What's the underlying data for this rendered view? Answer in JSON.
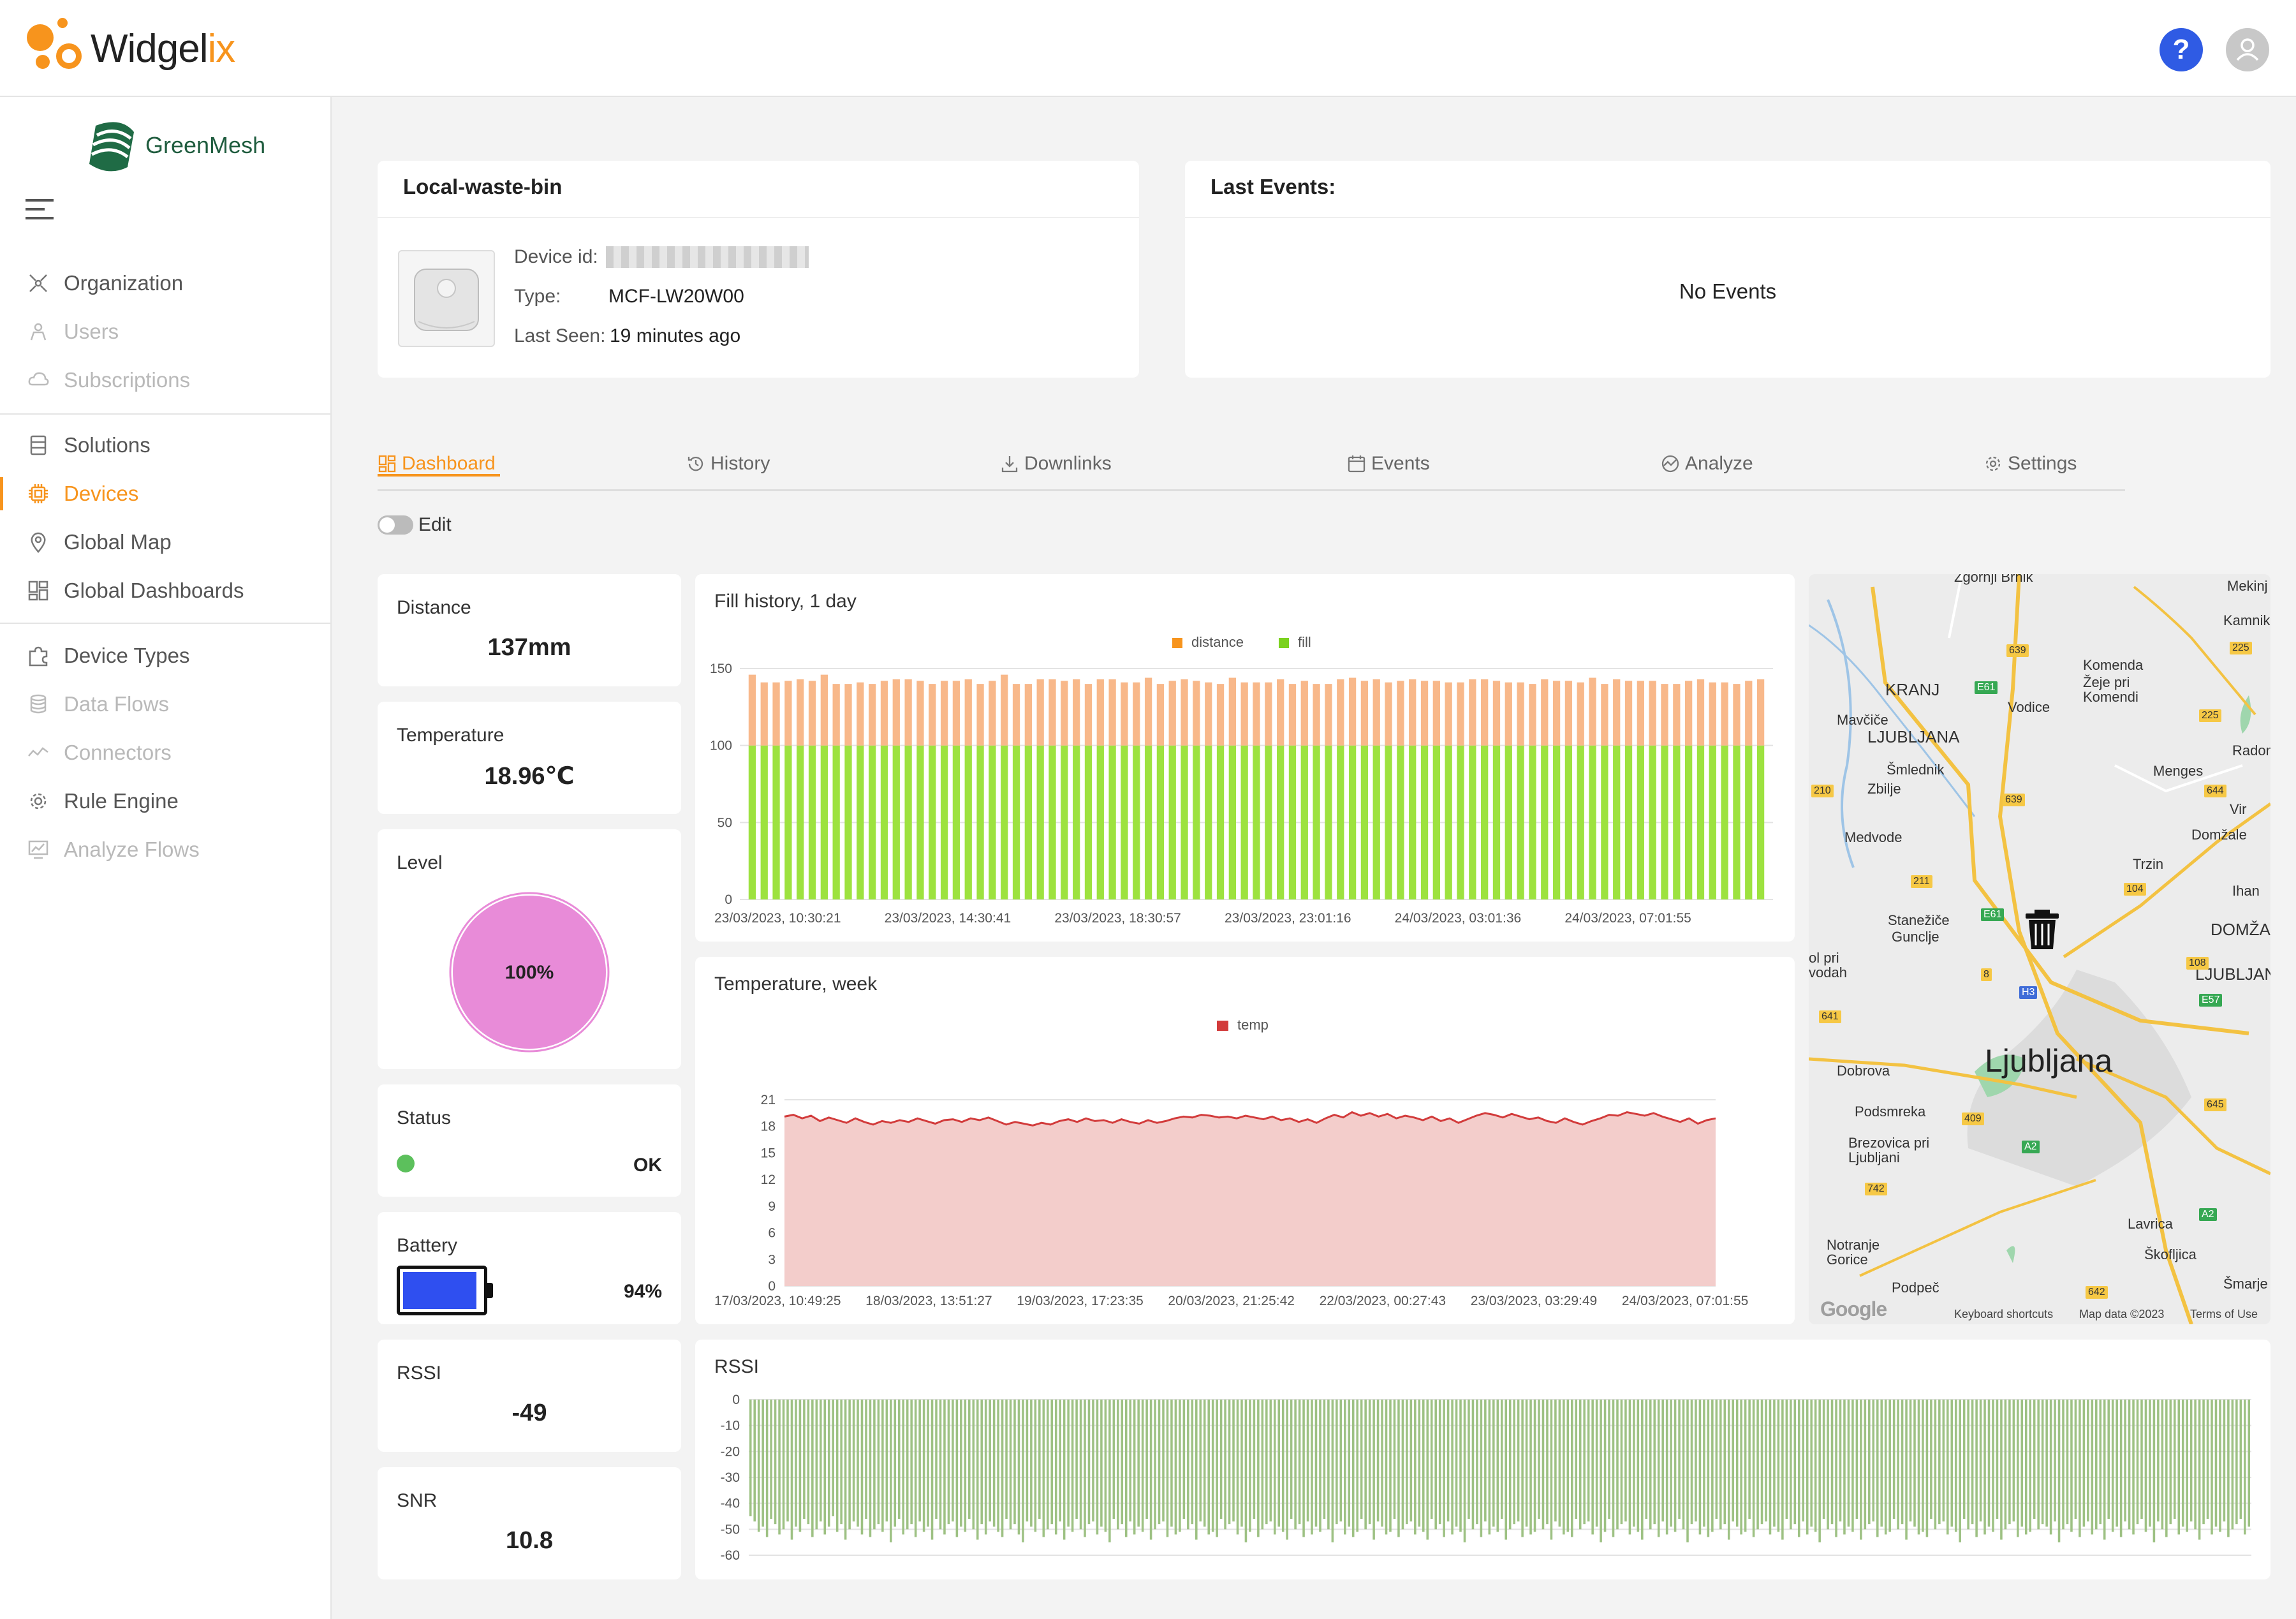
{
  "app": {
    "name_main": "Widgel",
    "name_accent": "ix"
  },
  "header": {
    "help_label": "?"
  },
  "org": {
    "name": "GreenMesh"
  },
  "sidebar": {
    "items": [
      {
        "label": "Organization",
        "icon": "organization-icon",
        "state": "normal"
      },
      {
        "label": "Users",
        "icon": "users-icon",
        "state": "disabled"
      },
      {
        "label": "Subscriptions",
        "icon": "cloud-icon",
        "state": "disabled"
      },
      {
        "label": "Solutions",
        "icon": "solutions-icon",
        "state": "normal"
      },
      {
        "label": "Devices",
        "icon": "chip-icon",
        "state": "active"
      },
      {
        "label": "Global Map",
        "icon": "map-pin-icon",
        "state": "normal"
      },
      {
        "label": "Global Dashboards",
        "icon": "dashboard-icon",
        "state": "normal"
      },
      {
        "label": "Device Types",
        "icon": "puzzle-icon",
        "state": "normal"
      },
      {
        "label": "Data Flows",
        "icon": "database-icon",
        "state": "disabled"
      },
      {
        "label": "Connectors",
        "icon": "connectors-icon",
        "state": "disabled"
      },
      {
        "label": "Rule Engine",
        "icon": "gear-icon",
        "state": "normal"
      },
      {
        "label": "Analyze Flows",
        "icon": "analyze-icon",
        "state": "disabled"
      }
    ]
  },
  "device": {
    "name": "Local-waste-bin",
    "id_label": "Device id:",
    "type_label": "Type:",
    "type_value": "MCF-LW20W00",
    "last_seen_label": "Last Seen:",
    "last_seen_value": "19 minutes ago"
  },
  "events": {
    "title": "Last Events:",
    "empty": "No Events"
  },
  "tabs": [
    {
      "label": "Dashboard",
      "icon": "dashboard-icon"
    },
    {
      "label": "History",
      "icon": "history-icon"
    },
    {
      "label": "Downlinks",
      "icon": "download-icon"
    },
    {
      "label": "Events",
      "icon": "calendar-icon"
    },
    {
      "label": "Analyze",
      "icon": "analyze-icon"
    },
    {
      "label": "Settings",
      "icon": "settings-icon"
    }
  ],
  "edit": {
    "label": "Edit",
    "enabled": false
  },
  "widgets": {
    "distance": {
      "label": "Distance",
      "value": "137mm"
    },
    "temperature": {
      "label": "Temperature",
      "value": "18.96℃"
    },
    "level": {
      "label": "Level",
      "value": "100%",
      "fraction": 1.0,
      "color": "#e88bd8"
    },
    "status": {
      "label": "Status",
      "value": "OK",
      "color": "#5cc05c"
    },
    "battery": {
      "label": "Battery",
      "value": "94%",
      "fraction": 0.94,
      "color": "#2f4ff0"
    },
    "rssi": {
      "label": "RSSI",
      "value": "-49"
    },
    "snr": {
      "label": "SNR",
      "value": "10.8"
    }
  },
  "chart_data": [
    {
      "type": "bar",
      "stacked": true,
      "title": "Fill history, 1 day",
      "ylim": [
        0,
        150
      ],
      "yticks": [
        0,
        50,
        100,
        150
      ],
      "xtick_labels": [
        "23/03/2023, 10:30:21",
        "23/03/2023, 14:30:41",
        "23/03/2023, 18:30:57",
        "23/03/2023, 23:01:16",
        "24/03/2023, 03:01:36",
        "24/03/2023, 07:01:55"
      ],
      "legend_position": "top-center",
      "series": [
        {
          "name": "fill",
          "color": "#9de23f",
          "values": [
            100,
            100,
            100,
            100,
            100,
            100,
            100,
            100,
            100,
            100,
            100,
            100,
            100,
            100,
            100,
            100,
            100,
            100,
            100,
            100,
            100,
            100,
            100,
            100,
            100,
            100,
            100,
            100,
            100,
            100,
            100,
            100,
            100,
            100,
            100,
            100,
            100,
            100,
            100,
            100,
            100,
            100,
            100,
            100,
            100,
            100,
            100,
            100,
            100,
            100,
            100,
            100,
            100,
            100,
            100,
            100,
            100,
            100,
            100,
            100,
            100,
            100,
            100,
            100,
            100,
            100,
            100,
            100,
            100,
            100,
            100,
            100,
            100,
            100,
            100,
            100,
            100,
            100,
            100,
            100,
            100,
            100,
            100,
            100,
            100
          ]
        },
        {
          "name": "distance",
          "color": "#f8b88a",
          "values": [
            46,
            41,
            41,
            42,
            43,
            42,
            46,
            40,
            40,
            41,
            40,
            42,
            43,
            43,
            42,
            40,
            42,
            42,
            43,
            40,
            42,
            46,
            40,
            40,
            43,
            43,
            42,
            43,
            40,
            43,
            43,
            41,
            41,
            44,
            40,
            42,
            43,
            42,
            41,
            40,
            44,
            41,
            41,
            41,
            43,
            40,
            42,
            40,
            40,
            43,
            44,
            42,
            43,
            41,
            42,
            43,
            42,
            42,
            41,
            41,
            43,
            43,
            42,
            41,
            41,
            40,
            43,
            42,
            42,
            41,
            44,
            40,
            43,
            42,
            42,
            42,
            40,
            40,
            42,
            43,
            41,
            41,
            40,
            42,
            43
          ]
        }
      ]
    },
    {
      "type": "area",
      "title": "Temperature, week",
      "ylim": [
        0,
        21
      ],
      "yticks": [
        0,
        3,
        6,
        9,
        12,
        15,
        18,
        21
      ],
      "xtick_labels": [
        "17/03/2023, 10:49:25",
        "18/03/2023, 13:51:27",
        "19/03/2023, 17:23:35",
        "20/03/2023, 21:25:42",
        "22/03/2023, 00:27:43",
        "23/03/2023, 03:29:49",
        "24/03/2023, 07:01:55"
      ],
      "legend_position": "top-center",
      "series": [
        {
          "name": "temp",
          "color": "#d23b3b",
          "fill": "#f3cdcb",
          "values": [
            19.1,
            19.3,
            18.9,
            19.2,
            18.6,
            19.0,
            18.7,
            18.4,
            18.9,
            18.5,
            18.2,
            18.6,
            18.4,
            18.7,
            18.5,
            18.9,
            18.6,
            18.3,
            18.7,
            18.8,
            18.5,
            18.9,
            18.7,
            19.0,
            18.6,
            18.2,
            18.5,
            18.3,
            18.1,
            18.4,
            18.2,
            18.6,
            18.8,
            18.5,
            18.9,
            18.6,
            18.7,
            18.4,
            18.8,
            18.5,
            18.3,
            18.7,
            18.4,
            18.6,
            18.9,
            19.1,
            19.0,
            19.3,
            19.2,
            19.0,
            19.1,
            18.9,
            19.2,
            19.0,
            18.8,
            19.1,
            18.7,
            18.9,
            18.5,
            18.8,
            18.4,
            18.9,
            19.3,
            19.0,
            19.6,
            19.2,
            19.5,
            19.1,
            19.4,
            18.9,
            19.2,
            19.0,
            18.7,
            19.1,
            18.6,
            18.9,
            18.4,
            18.8,
            19.2,
            19.5,
            19.3,
            19.0,
            19.4,
            19.1,
            18.8,
            19.0,
            18.6,
            18.4,
            18.9,
            18.5,
            18.2,
            18.6,
            18.9,
            19.3,
            19.2,
            19.6,
            19.4,
            19.2,
            19.5,
            19.1,
            18.8,
            18.5,
            18.9,
            18.3,
            18.7,
            18.9
          ]
        }
      ]
    },
    {
      "type": "bar",
      "title": "RSSI",
      "ylim": [
        -60,
        0
      ],
      "yticks": [
        0,
        -10,
        -20,
        -30,
        -40,
        -50,
        -60
      ],
      "series": [
        {
          "name": "RSSI",
          "color": "#9dc183",
          "values": [
            -45,
            -47,
            -51,
            -49,
            -53,
            -46,
            -48,
            -52,
            -50,
            -47,
            -54,
            -49,
            -51,
            -46,
            -48,
            -53,
            -50,
            -47,
            -52,
            -49,
            -45,
            -51,
            -48,
            -54,
            -50,
            -47,
            -49,
            -52,
            -46,
            -53,
            -50,
            -48,
            -51,
            -47,
            -55,
            -49,
            -46,
            -52,
            -50,
            -48,
            -53,
            -47,
            -51,
            -49,
            -54,
            -46,
            -50,
            -52,
            -48,
            -47,
            -53,
            -49,
            -51,
            -46,
            -50,
            -54,
            -48,
            -52,
            -47,
            -49,
            -51,
            -53,
            -46,
            -50,
            -48,
            -52,
            -55,
            -47,
            -49,
            -51,
            -46,
            -53,
            -50,
            -48,
            -52,
            -47,
            -54,
            -49,
            -51,
            -46,
            -50,
            -53,
            -48,
            -47,
            -52,
            -49,
            -51,
            -55,
            -46,
            -50,
            -48,
            -53,
            -47,
            -52,
            -49,
            -51,
            -46,
            -54,
            -50,
            -48,
            -47,
            -53,
            -49,
            -52,
            -51,
            -46,
            -50,
            -48,
            -54,
            -47,
            -49,
            -52,
            -51,
            -53,
            -46,
            -50,
            -48,
            -47,
            -52,
            -49,
            -55,
            -51,
            -46,
            -53,
            -50,
            -48,
            -47,
            -52,
            -49,
            -51,
            -54,
            -46,
            -50,
            -48,
            -53,
            -47,
            -52,
            -49,
            -51,
            -46,
            -50,
            -55,
            -48,
            -47,
            -52,
            -49,
            -53,
            -51,
            -46,
            -50,
            -48,
            -54,
            -47,
            -49,
            -52,
            -51,
            -46,
            -53,
            -50,
            -48,
            -47,
            -52,
            -49,
            -51,
            -54,
            -46,
            -50,
            -48,
            -53,
            -47,
            -52,
            -49,
            -51,
            -55,
            -46,
            -50,
            -48,
            -53,
            -47,
            -52,
            -49,
            -51,
            -46,
            -54,
            -50,
            -48,
            -47,
            -53,
            -49,
            -52,
            -51,
            -46,
            -50,
            -48,
            -54,
            -47,
            -49,
            -52,
            -51,
            -53,
            -46,
            -50,
            -48,
            -47,
            -52,
            -49,
            -55,
            -51,
            -46,
            -53,
            -50,
            -48,
            -47,
            -52,
            -49,
            -51,
            -54,
            -46,
            -50,
            -48,
            -53,
            -47,
            -52,
            -49,
            -51,
            -46,
            -50,
            -55,
            -48,
            -47,
            -52,
            -49,
            -53,
            -51,
            -46,
            -50,
            -48,
            -54,
            -47,
            -49,
            -52,
            -51,
            -46,
            -53,
            -50,
            -48,
            -47,
            -52,
            -49,
            -51,
            -54,
            -46,
            -50,
            -48,
            -53,
            -47,
            -52,
            -49,
            -51,
            -55,
            -46,
            -50,
            -48,
            -53,
            -47,
            -52,
            -49,
            -51,
            -46,
            -54,
            -50,
            -48,
            -47,
            -53,
            -49,
            -52,
            -51,
            -46,
            -50,
            -48,
            -54,
            -47,
            -49,
            -52,
            -51,
            -53,
            -46,
            -50,
            -48,
            -47,
            -52,
            -49,
            -51,
            -55,
            -46,
            -50,
            -48,
            -53,
            -47,
            -52,
            -49,
            -51,
            -46,
            -54,
            -50,
            -48,
            -47,
            -53,
            -49,
            -52,
            -51,
            -46,
            -50,
            -48,
            -49,
            -52,
            -47,
            -55,
            -50,
            -48,
            -51,
            -46,
            -53,
            -49,
            -47,
            -52,
            -50,
            -48,
            -54,
            -46,
            -51,
            -49,
            -53,
            -47,
            -50,
            -52,
            -48,
            -46,
            -51,
            -49,
            -55,
            -47,
            -50,
            -53,
            -48,
            -46,
            -52,
            -49,
            -51,
            -47,
            -50,
            -54,
            -48,
            -46,
            -52,
            -49,
            -51,
            -47,
            -53,
            -50,
            -48,
            -46,
            -52,
            -49
          ]
        }
      ]
    }
  ],
  "map": {
    "labels": [
      "Zgornji Brnik",
      "Mekinj",
      "Kamnik",
      "Komenda",
      "Žeje pri Komendi",
      "KRANJ",
      "Vodice",
      "Mavčiče",
      "LJUBLJANA",
      "Radomlj",
      "Šmlednik",
      "Menges",
      "Zbilje",
      "Vir",
      "Domžale",
      "Medvode",
      "Trzin",
      "Ihan",
      "Stanežiče",
      "Gunclje",
      "DOMŽAL",
      "LJUBLJAN",
      "ol pri vodah",
      "Ljubljana",
      "Dobrova",
      "Podsmreka",
      "Brezovica pri Ljubljani",
      "Lavrica",
      "Notranje Gorice",
      "Škofljica",
      "Podpeč",
      "Šmarje"
    ],
    "road_badges": [
      "639",
      "225",
      "E61",
      "225",
      "210",
      "639",
      "644",
      "211",
      "104",
      "E61",
      "108",
      "8",
      "H3",
      "E57",
      "641",
      "645",
      "409",
      "A2",
      "742",
      "A2",
      "642"
    ],
    "footer_links": [
      "Keyboard shortcuts",
      "Map data ©2023",
      "Terms of Use"
    ],
    "google_label": "Google",
    "marker_icon": "trash-bin-icon"
  }
}
